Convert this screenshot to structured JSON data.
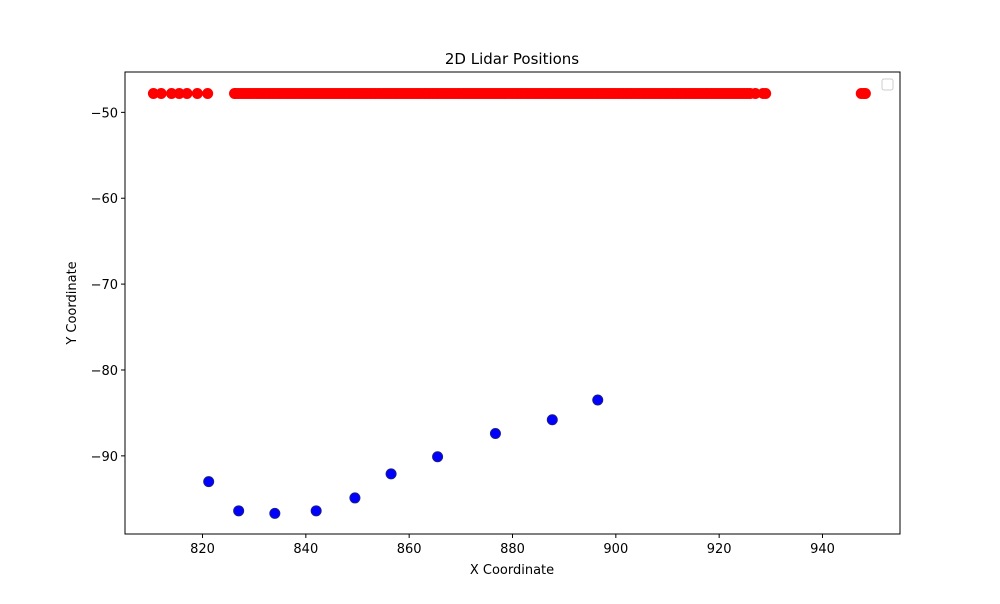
{
  "chart_data": {
    "type": "scatter",
    "title": "2D Lidar Positions",
    "xlabel": "X Coordinate",
    "ylabel": "Y Coordinate",
    "xlim": [
      805,
      955
    ],
    "ylim": [
      -99.1,
      -45.3
    ],
    "xticks": [
      820,
      840,
      860,
      880,
      900,
      920,
      940
    ],
    "yticks": [
      -50,
      -60,
      -70,
      -80,
      -90
    ],
    "tick_labels_x": [
      "820",
      "840",
      "860",
      "880",
      "900",
      "920",
      "940"
    ],
    "tick_labels_y": [
      "−50",
      "−60",
      "−70",
      "−80",
      "−90"
    ],
    "grid": false,
    "legend": {
      "position": "top-right",
      "entries": []
    },
    "series": [
      {
        "color": "#ff0000",
        "marker": "circle",
        "y_constant": -47.8,
        "x": [
          810.5,
          812.0,
          814.0,
          815.5,
          817.0,
          819.0,
          821.0,
          826.2,
          927.0,
          928.5,
          929.0,
          947.5,
          948.0,
          948.3
        ],
        "dense_x_range": [
          826.5,
          926.0
        ]
      },
      {
        "color": "#0000ff",
        "marker": "circle",
        "points": [
          [
            821.2,
            -93.0
          ],
          [
            827.0,
            -96.4
          ],
          [
            834.0,
            -96.7
          ],
          [
            842.0,
            -96.4
          ],
          [
            849.5,
            -94.9
          ],
          [
            856.5,
            -92.1
          ],
          [
            865.5,
            -90.1
          ],
          [
            876.7,
            -87.4
          ],
          [
            887.7,
            -85.8
          ],
          [
            896.5,
            -83.5
          ]
        ]
      }
    ]
  }
}
